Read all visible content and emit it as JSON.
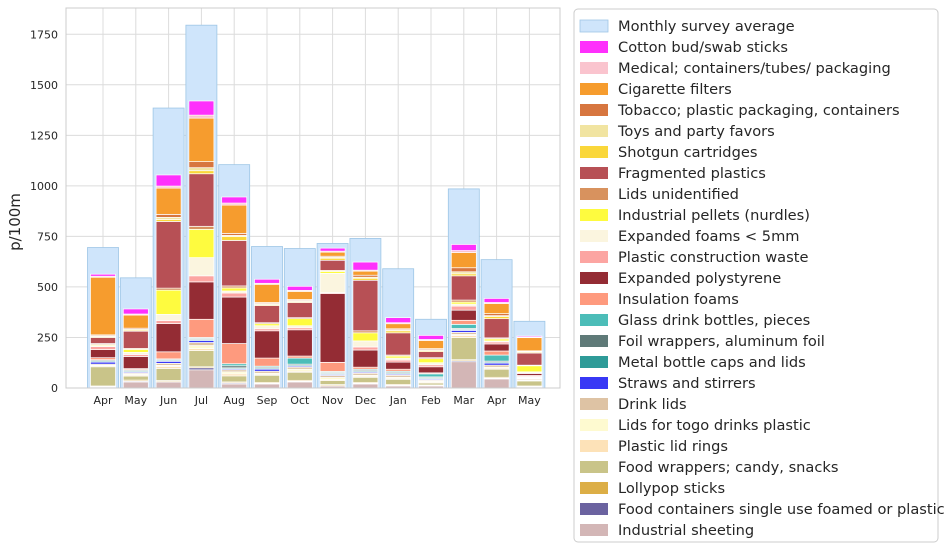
{
  "chart_data": {
    "type": "bar",
    "stacked": true,
    "ylabel": "p/100m",
    "ylim": [
      0,
      1880
    ],
    "yticks": [
      0,
      250,
      500,
      750,
      1000,
      1250,
      1500,
      1750
    ],
    "grid": true,
    "legend_position": "right",
    "categories": [
      "Apr",
      "May",
      "Jun",
      "Jul",
      "Aug",
      "Sep",
      "Oct",
      "Nov",
      "Dec",
      "Jan",
      "Feb",
      "Mar",
      "Apr",
      "May"
    ],
    "monthly_average": {
      "name": "Monthly survey average",
      "color": "#cfe5fb",
      "values": [
        695,
        545,
        1385,
        1795,
        1105,
        700,
        690,
        715,
        740,
        590,
        340,
        985,
        635,
        330
      ]
    },
    "series": [
      {
        "name": "Industrial sheeting",
        "color": "#d3b6b6",
        "values": [
          5,
          30,
          30,
          90,
          20,
          20,
          30,
          10,
          20,
          10,
          10,
          130,
          45,
          5
        ]
      },
      {
        "name": "Food containers single use foamed or plastic",
        "color": "#6b63a0",
        "values": [
          2,
          4,
          2,
          10,
          5,
          3,
          3,
          2,
          3,
          3,
          2,
          5,
          3,
          2
        ]
      },
      {
        "name": "Lollypop sticks",
        "color": "#dcae46",
        "values": [
          3,
          5,
          5,
          5,
          5,
          5,
          5,
          5,
          5,
          5,
          3,
          5,
          5,
          3
        ]
      },
      {
        "name": "Food wrappers; candy, snacks",
        "color": "#c9c489",
        "values": [
          95,
          20,
          60,
          80,
          30,
          35,
          40,
          20,
          25,
          25,
          10,
          110,
          40,
          25
        ]
      },
      {
        "name": "Plastic lid rings",
        "color": "#fde2b8",
        "values": [
          5,
          5,
          10,
          10,
          10,
          5,
          5,
          5,
          5,
          5,
          5,
          10,
          5,
          3
        ]
      },
      {
        "name": "Lids for togo drinks plastic",
        "color": "#fefad0",
        "values": [
          3,
          5,
          5,
          15,
          10,
          5,
          10,
          10,
          5,
          5,
          5,
          5,
          5,
          3
        ]
      },
      {
        "name": "Drink lids",
        "color": "#dec3a4",
        "values": [
          5,
          5,
          10,
          15,
          10,
          10,
          10,
          10,
          10,
          10,
          5,
          10,
          10,
          5
        ]
      },
      {
        "name": "Straws and stirrers",
        "color": "#3838f5",
        "values": [
          10,
          5,
          10,
          10,
          5,
          10,
          5,
          5,
          5,
          5,
          5,
          10,
          10,
          3
        ]
      },
      {
        "name": "Metal bottle caps and lids",
        "color": "#2e9b98",
        "values": [
          5,
          5,
          5,
          5,
          5,
          5,
          5,
          5,
          5,
          5,
          5,
          5,
          5,
          2
        ]
      },
      {
        "name": "Foil wrappers, aluminum foil",
        "color": "#5f7a78",
        "values": [
          5,
          5,
          5,
          5,
          10,
          5,
          5,
          5,
          5,
          5,
          5,
          5,
          5,
          3
        ]
      },
      {
        "name": "Glass drink bottles, pieces",
        "color": "#4cbdb8",
        "values": [
          2,
          2,
          2,
          5,
          10,
          5,
          30,
          5,
          5,
          5,
          15,
          20,
          30,
          3
        ]
      },
      {
        "name": "Insulation foams",
        "color": "#fe9a7e",
        "values": [
          10,
          5,
          35,
          90,
          100,
          40,
          10,
          45,
          10,
          10,
          5,
          20,
          20,
          5
        ]
      },
      {
        "name": "Expanded polystyrene",
        "color": "#942c34",
        "values": [
          40,
          60,
          140,
          185,
          230,
          135,
          130,
          340,
          85,
          35,
          30,
          50,
          35,
          10
        ]
      },
      {
        "name": "Plastic construction waste",
        "color": "#fca5a2",
        "values": [
          15,
          10,
          15,
          30,
          20,
          10,
          10,
          5,
          15,
          10,
          10,
          20,
          10,
          3
        ]
      },
      {
        "name": "Expanded foams < 5mm",
        "color": "#fbf5df",
        "values": [
          5,
          10,
          30,
          90,
          10,
          15,
          10,
          95,
          30,
          10,
          10,
          10,
          5,
          5
        ]
      },
      {
        "name": "Industrial pellets (nurdles)",
        "color": "#fefb3f",
        "values": [
          5,
          15,
          120,
          140,
          15,
          10,
          35,
          10,
          40,
          10,
          20,
          10,
          10,
          30
        ]
      },
      {
        "name": "Lids unidentified",
        "color": "#d8925e",
        "values": [
          5,
          5,
          10,
          15,
          10,
          5,
          5,
          5,
          10,
          5,
          5,
          10,
          5,
          3
        ]
      },
      {
        "name": "Fragmented plastics",
        "color": "#b75055",
        "values": [
          30,
          85,
          330,
          260,
          225,
          85,
          75,
          50,
          250,
          110,
          30,
          120,
          95,
          60
        ]
      },
      {
        "name": "Shotgun cartridges",
        "color": "#fad73a",
        "values": [
          5,
          5,
          10,
          15,
          20,
          5,
          5,
          10,
          10,
          10,
          5,
          10,
          10,
          5
        ]
      },
      {
        "name": "Toys and party favors",
        "color": "#f1e4a1",
        "values": [
          3,
          5,
          10,
          15,
          5,
          5,
          5,
          5,
          5,
          5,
          5,
          10,
          5,
          3
        ]
      },
      {
        "name": "Tobacco; plastic packaging, containers",
        "color": "#d7763f",
        "values": [
          5,
          5,
          15,
          30,
          10,
          5,
          5,
          5,
          10,
          5,
          5,
          20,
          10,
          3
        ]
      },
      {
        "name": "Cigarette filters",
        "color": "#f69c2e",
        "values": [
          285,
          65,
          130,
          215,
          140,
          90,
          40,
          20,
          20,
          25,
          40,
          75,
          50,
          65
        ]
      },
      {
        "name": "Medical; containers/tubes/ packaging",
        "color": "#fac4ce",
        "values": [
          5,
          5,
          10,
          15,
          10,
          5,
          5,
          5,
          5,
          5,
          5,
          10,
          5,
          3
        ]
      },
      {
        "name": "Cotton bud/swab sticks",
        "color": "#fe30fc",
        "values": [
          10,
          25,
          55,
          70,
          30,
          20,
          20,
          15,
          40,
          25,
          20,
          30,
          20,
          5
        ]
      }
    ]
  }
}
